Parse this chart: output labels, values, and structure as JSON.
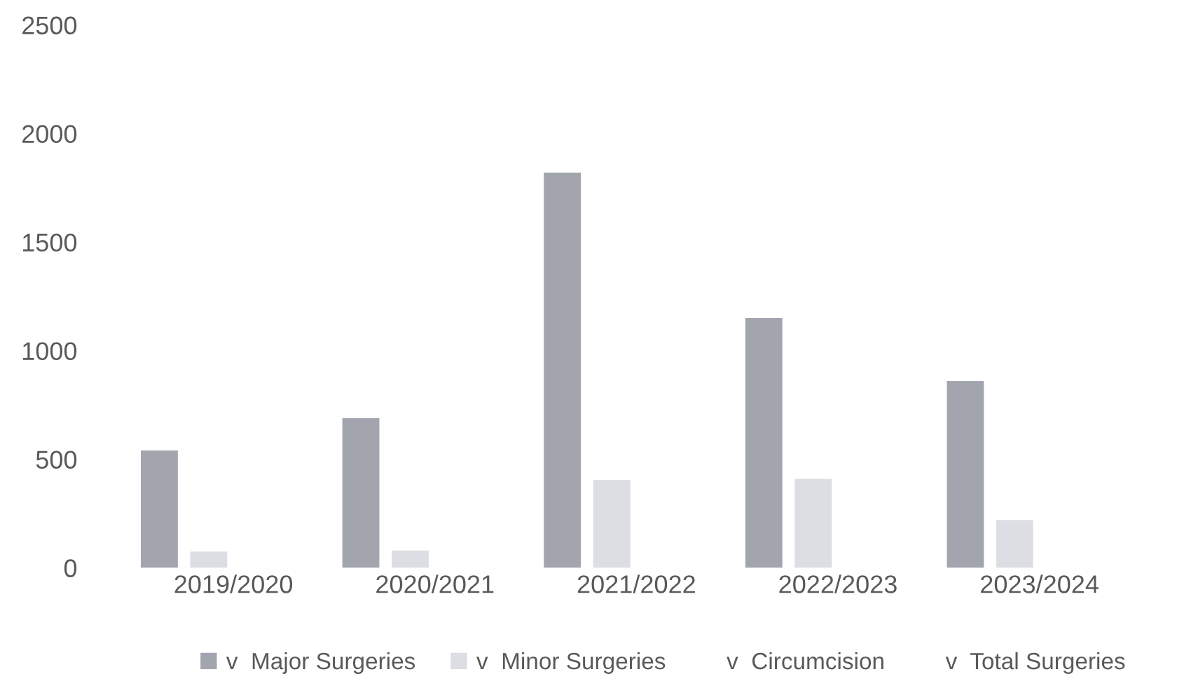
{
  "chart_data": {
    "type": "bar",
    "categories": [
      "2019/2020",
      "2020/2021",
      "2021/2022",
      "2022/2023",
      "2023/2024"
    ],
    "series": [
      {
        "name": "v  Major Surgeries",
        "color": "#a2a5ae",
        "values": [
          540,
          690,
          1820,
          1150,
          860
        ]
      },
      {
        "name": "v  Minor Surgeries",
        "color": "#dcdee4",
        "values": [
          75,
          80,
          405,
          410,
          220
        ]
      },
      {
        "name": "v  Circumcision",
        "values": [
          null,
          null,
          null,
          null,
          null
        ]
      },
      {
        "name": "v  Total Surgeries",
        "values": [
          null,
          null,
          null,
          null,
          null
        ]
      }
    ],
    "ylim": [
      0,
      2500
    ],
    "yticks": [
      0,
      500,
      1000,
      1500,
      2000,
      2500
    ],
    "grid": false,
    "legend": "bottom"
  }
}
